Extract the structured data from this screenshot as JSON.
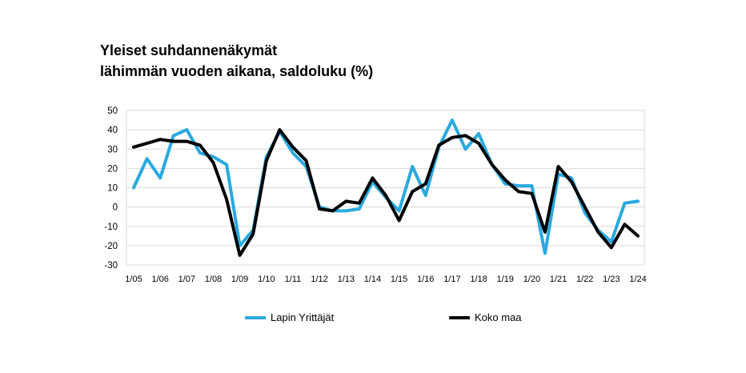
{
  "title": {
    "line1": "Yleiset suhdannenäkymät",
    "line2": "lähimmän vuoden aikana, saldoluku (%)"
  },
  "chart_data": {
    "type": "line",
    "title": "Yleiset suhdannenäkymät lähimmän vuoden aikana, saldoluku (%)",
    "xlabel": "",
    "ylabel": "saldoluku (%)",
    "ylim": [
      -30,
      50
    ],
    "y_ticks": [
      50,
      40,
      30,
      20,
      10,
      0,
      -10,
      -20,
      -30
    ],
    "grid": "horizontal",
    "legend_position": "bottom",
    "x_tick_labels": [
      "1/05",
      "1/06",
      "1/07",
      "1/08",
      "1/09",
      "1/10",
      "1/11",
      "1/12",
      "1/13",
      "1/14",
      "1/15",
      "1/16",
      "1/17",
      "1/18",
      "1/19",
      "1/20",
      "1/21",
      "1/22",
      "1/23",
      "1/24"
    ],
    "points_per_year": 2,
    "x_points": [
      "1/05",
      "2/05",
      "1/06",
      "2/06",
      "1/07",
      "2/07",
      "1/08",
      "2/08",
      "1/09",
      "2/09",
      "1/10",
      "2/10",
      "1/11",
      "2/11",
      "1/12",
      "2/12",
      "1/13",
      "2/13",
      "1/14",
      "2/14",
      "1/15",
      "2/15",
      "1/16",
      "2/16",
      "1/17",
      "2/17",
      "1/18",
      "2/18",
      "1/19",
      "2/19",
      "1/20",
      "2/20",
      "1/21",
      "2/21",
      "1/22",
      "2/22",
      "1/23",
      "2/23",
      "1/24"
    ],
    "series": [
      {
        "name": "Lapin Yrittäjät",
        "color": "#29a9e0",
        "values": [
          10,
          25,
          15,
          37,
          40,
          28,
          26,
          22,
          -20,
          -12,
          26,
          39,
          28,
          21,
          0,
          -2,
          -2,
          -1,
          13,
          5,
          -2,
          21,
          6,
          31,
          45,
          30,
          38,
          22,
          12,
          11,
          11,
          -24,
          17,
          15,
          -3,
          -12,
          -18,
          2,
          3
        ]
      },
      {
        "name": "Koko maa",
        "color": "#000000",
        "values": [
          31,
          33,
          35,
          34,
          34,
          32,
          23,
          4,
          -25,
          -14,
          24,
          40,
          31,
          24,
          -1,
          -2,
          3,
          2,
          15,
          6,
          -7,
          8,
          12,
          32,
          36,
          37,
          33,
          22,
          14,
          8,
          7,
          -13,
          21,
          13,
          0,
          -13,
          -21,
          -9,
          -15
        ]
      }
    ]
  },
  "legend": {
    "items": [
      {
        "label": "Lapin Yrittäjät",
        "color": "#29a9e0"
      },
      {
        "label": "Koko maa",
        "color": "#000000"
      }
    ]
  },
  "style": {
    "gridline_color": "#d9d9d9",
    "axis_text_color": "#000000",
    "background": "#ffffff"
  }
}
